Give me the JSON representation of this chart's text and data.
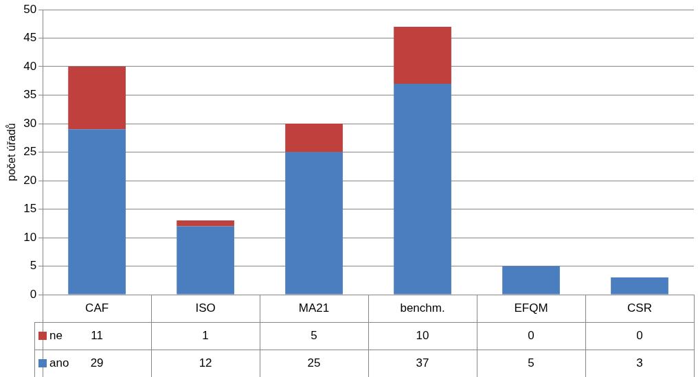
{
  "chart_data": {
    "type": "bar",
    "stacked": true,
    "ylabel": "počet úřadů",
    "categories": [
      "CAF",
      "ISO",
      "MA21",
      "benchm.",
      "EFQM",
      "CSR"
    ],
    "series": [
      {
        "name": "ano",
        "color": "#4a7ebf",
        "values": [
          29,
          12,
          25,
          37,
          5,
          3
        ]
      },
      {
        "name": "ne",
        "color": "#c0403d",
        "values": [
          11,
          1,
          5,
          10,
          0,
          0
        ]
      }
    ],
    "ylim": [
      0,
      50
    ],
    "yticks": [
      0,
      5,
      10,
      15,
      20,
      25,
      30,
      35,
      40,
      45,
      50
    ],
    "grid": "y",
    "legend": "bottom left",
    "data_labels": true
  }
}
